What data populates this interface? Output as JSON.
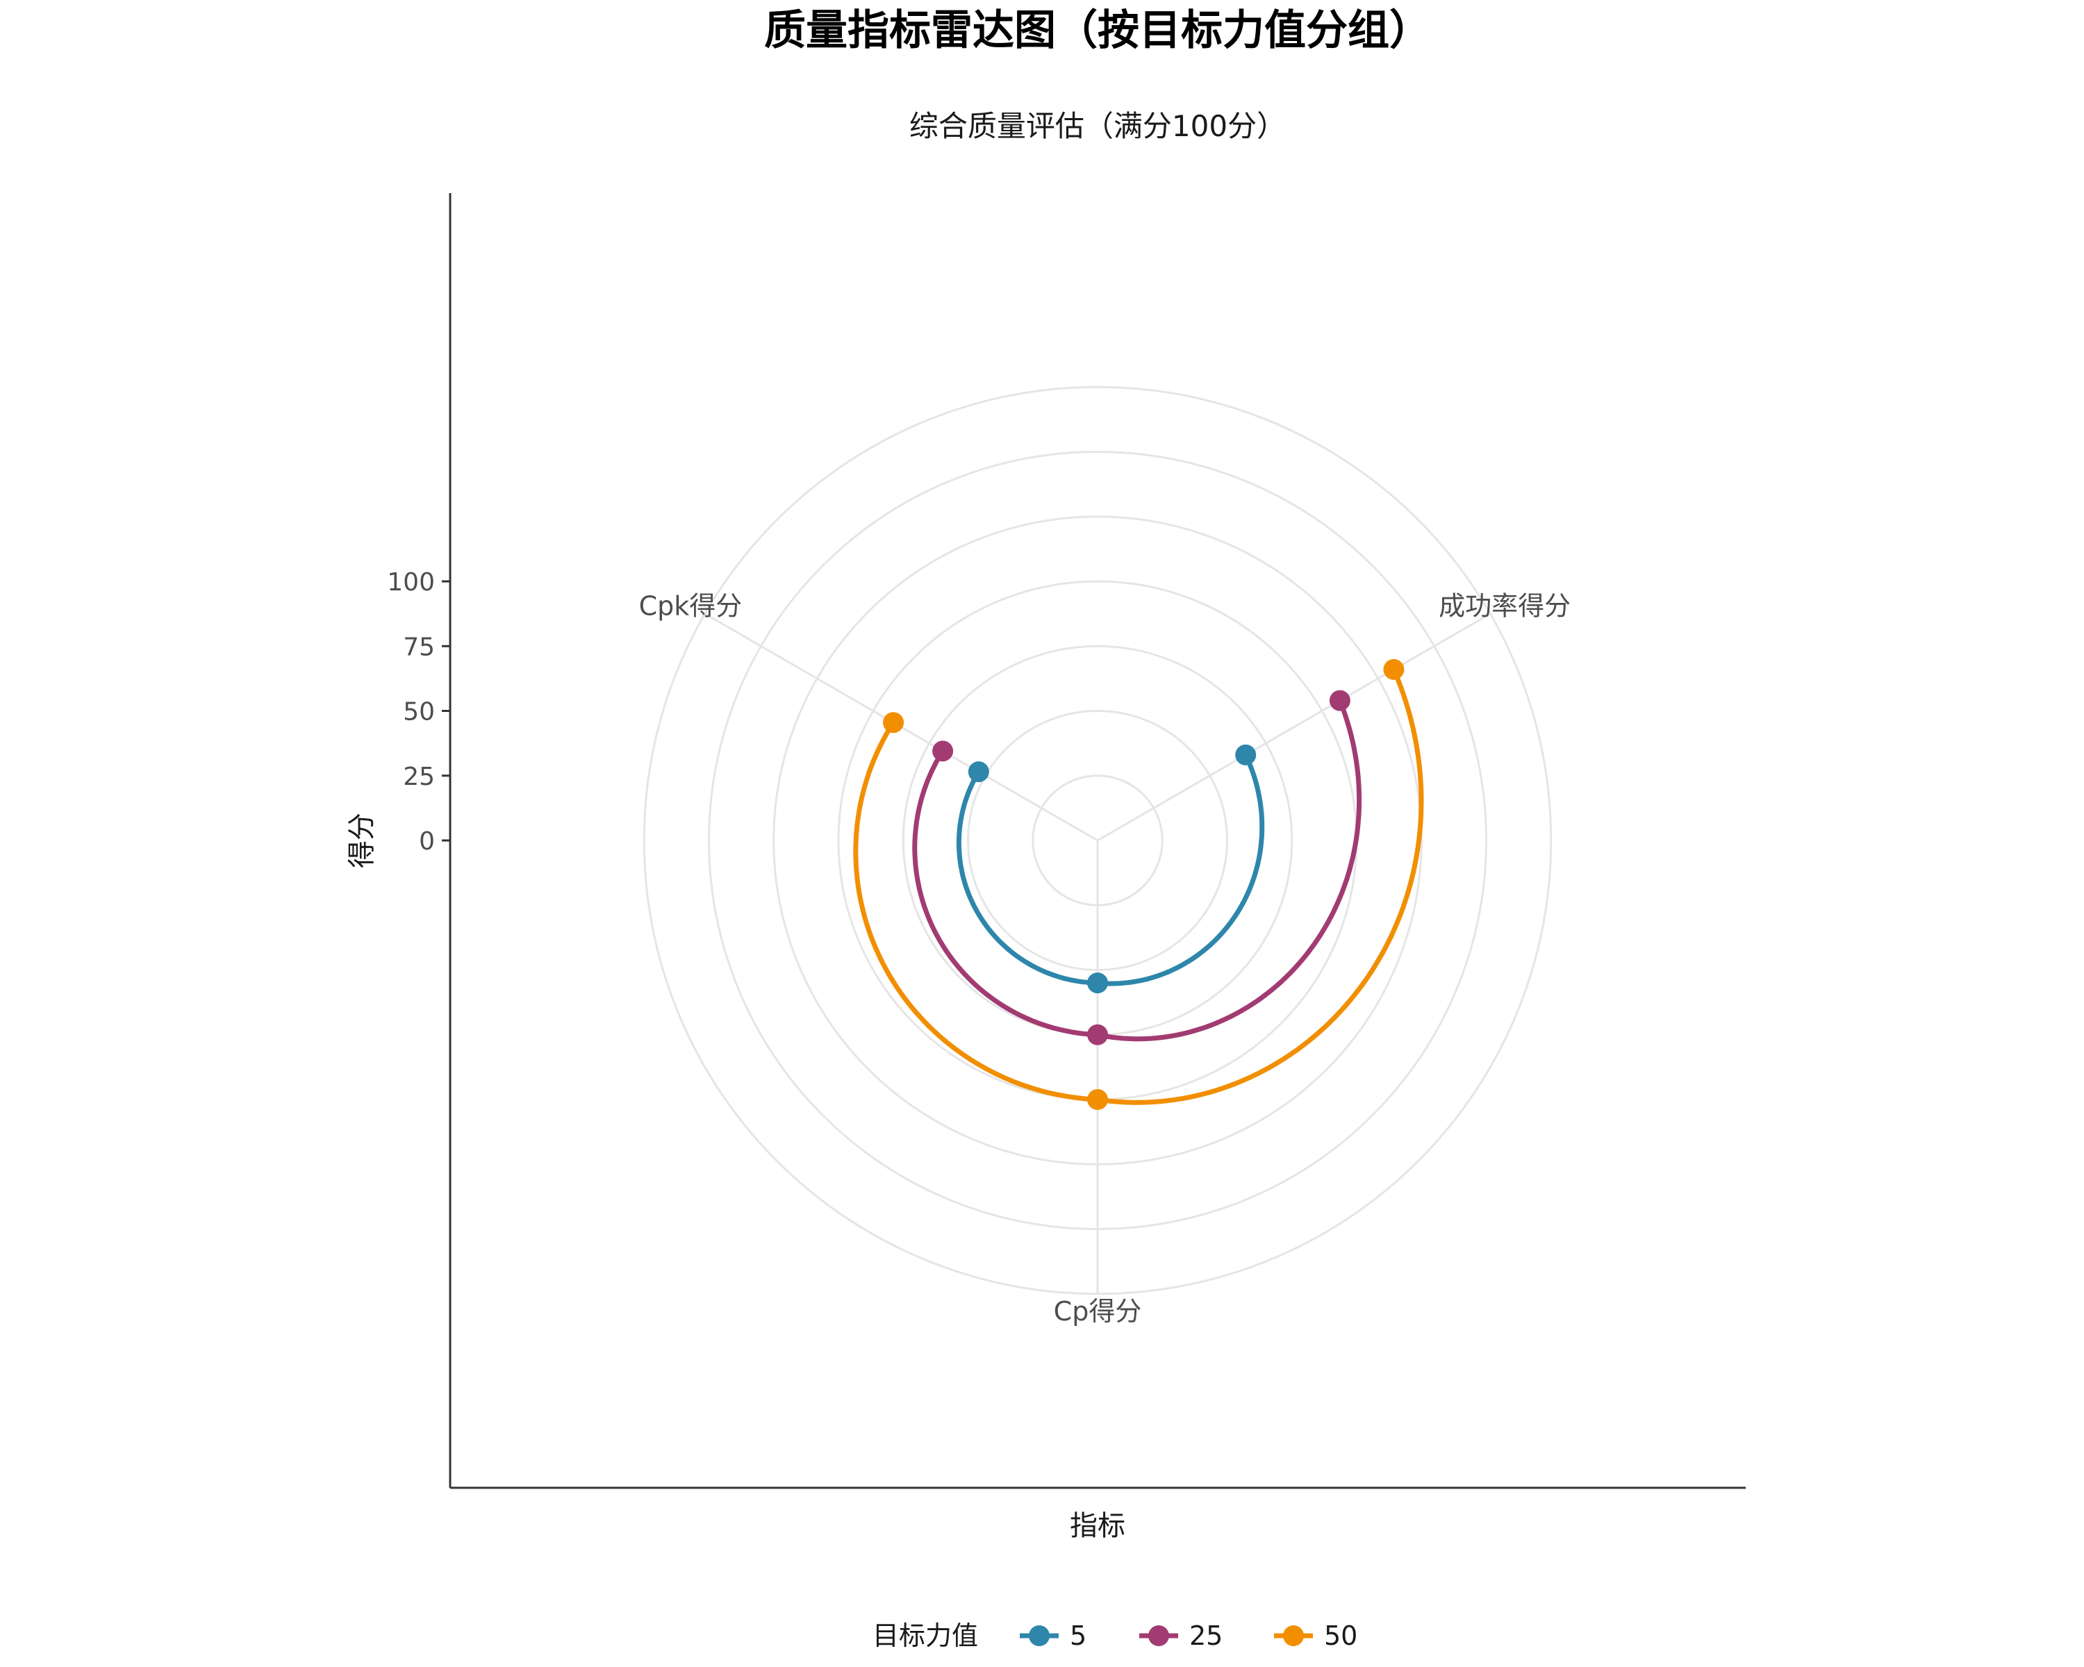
{
  "chart_data": {
    "type": "radar",
    "title": "质量指标雷达图（按目标力值分组）",
    "subtitle": "综合质量评估（满分100分）",
    "xlabel": "指标",
    "ylabel": "得分",
    "categories": [
      "成功率得分",
      "Cp得分",
      "Cpk得分"
    ],
    "y_ticks": [
      0,
      25,
      50,
      75,
      100
    ],
    "ylim": [
      -50,
      125
    ],
    "grid": true,
    "legend": {
      "title": "目标力值",
      "placement": "bottom"
    },
    "series": [
      {
        "name": "5",
        "color": "#2E86AB",
        "values": [
          16,
          5,
          3
        ]
      },
      {
        "name": "25",
        "color": "#A23B72",
        "values": [
          58,
          25,
          19
        ]
      },
      {
        "name": "50",
        "color": "#F18F01",
        "values": [
          82,
          50,
          41
        ]
      }
    ]
  }
}
